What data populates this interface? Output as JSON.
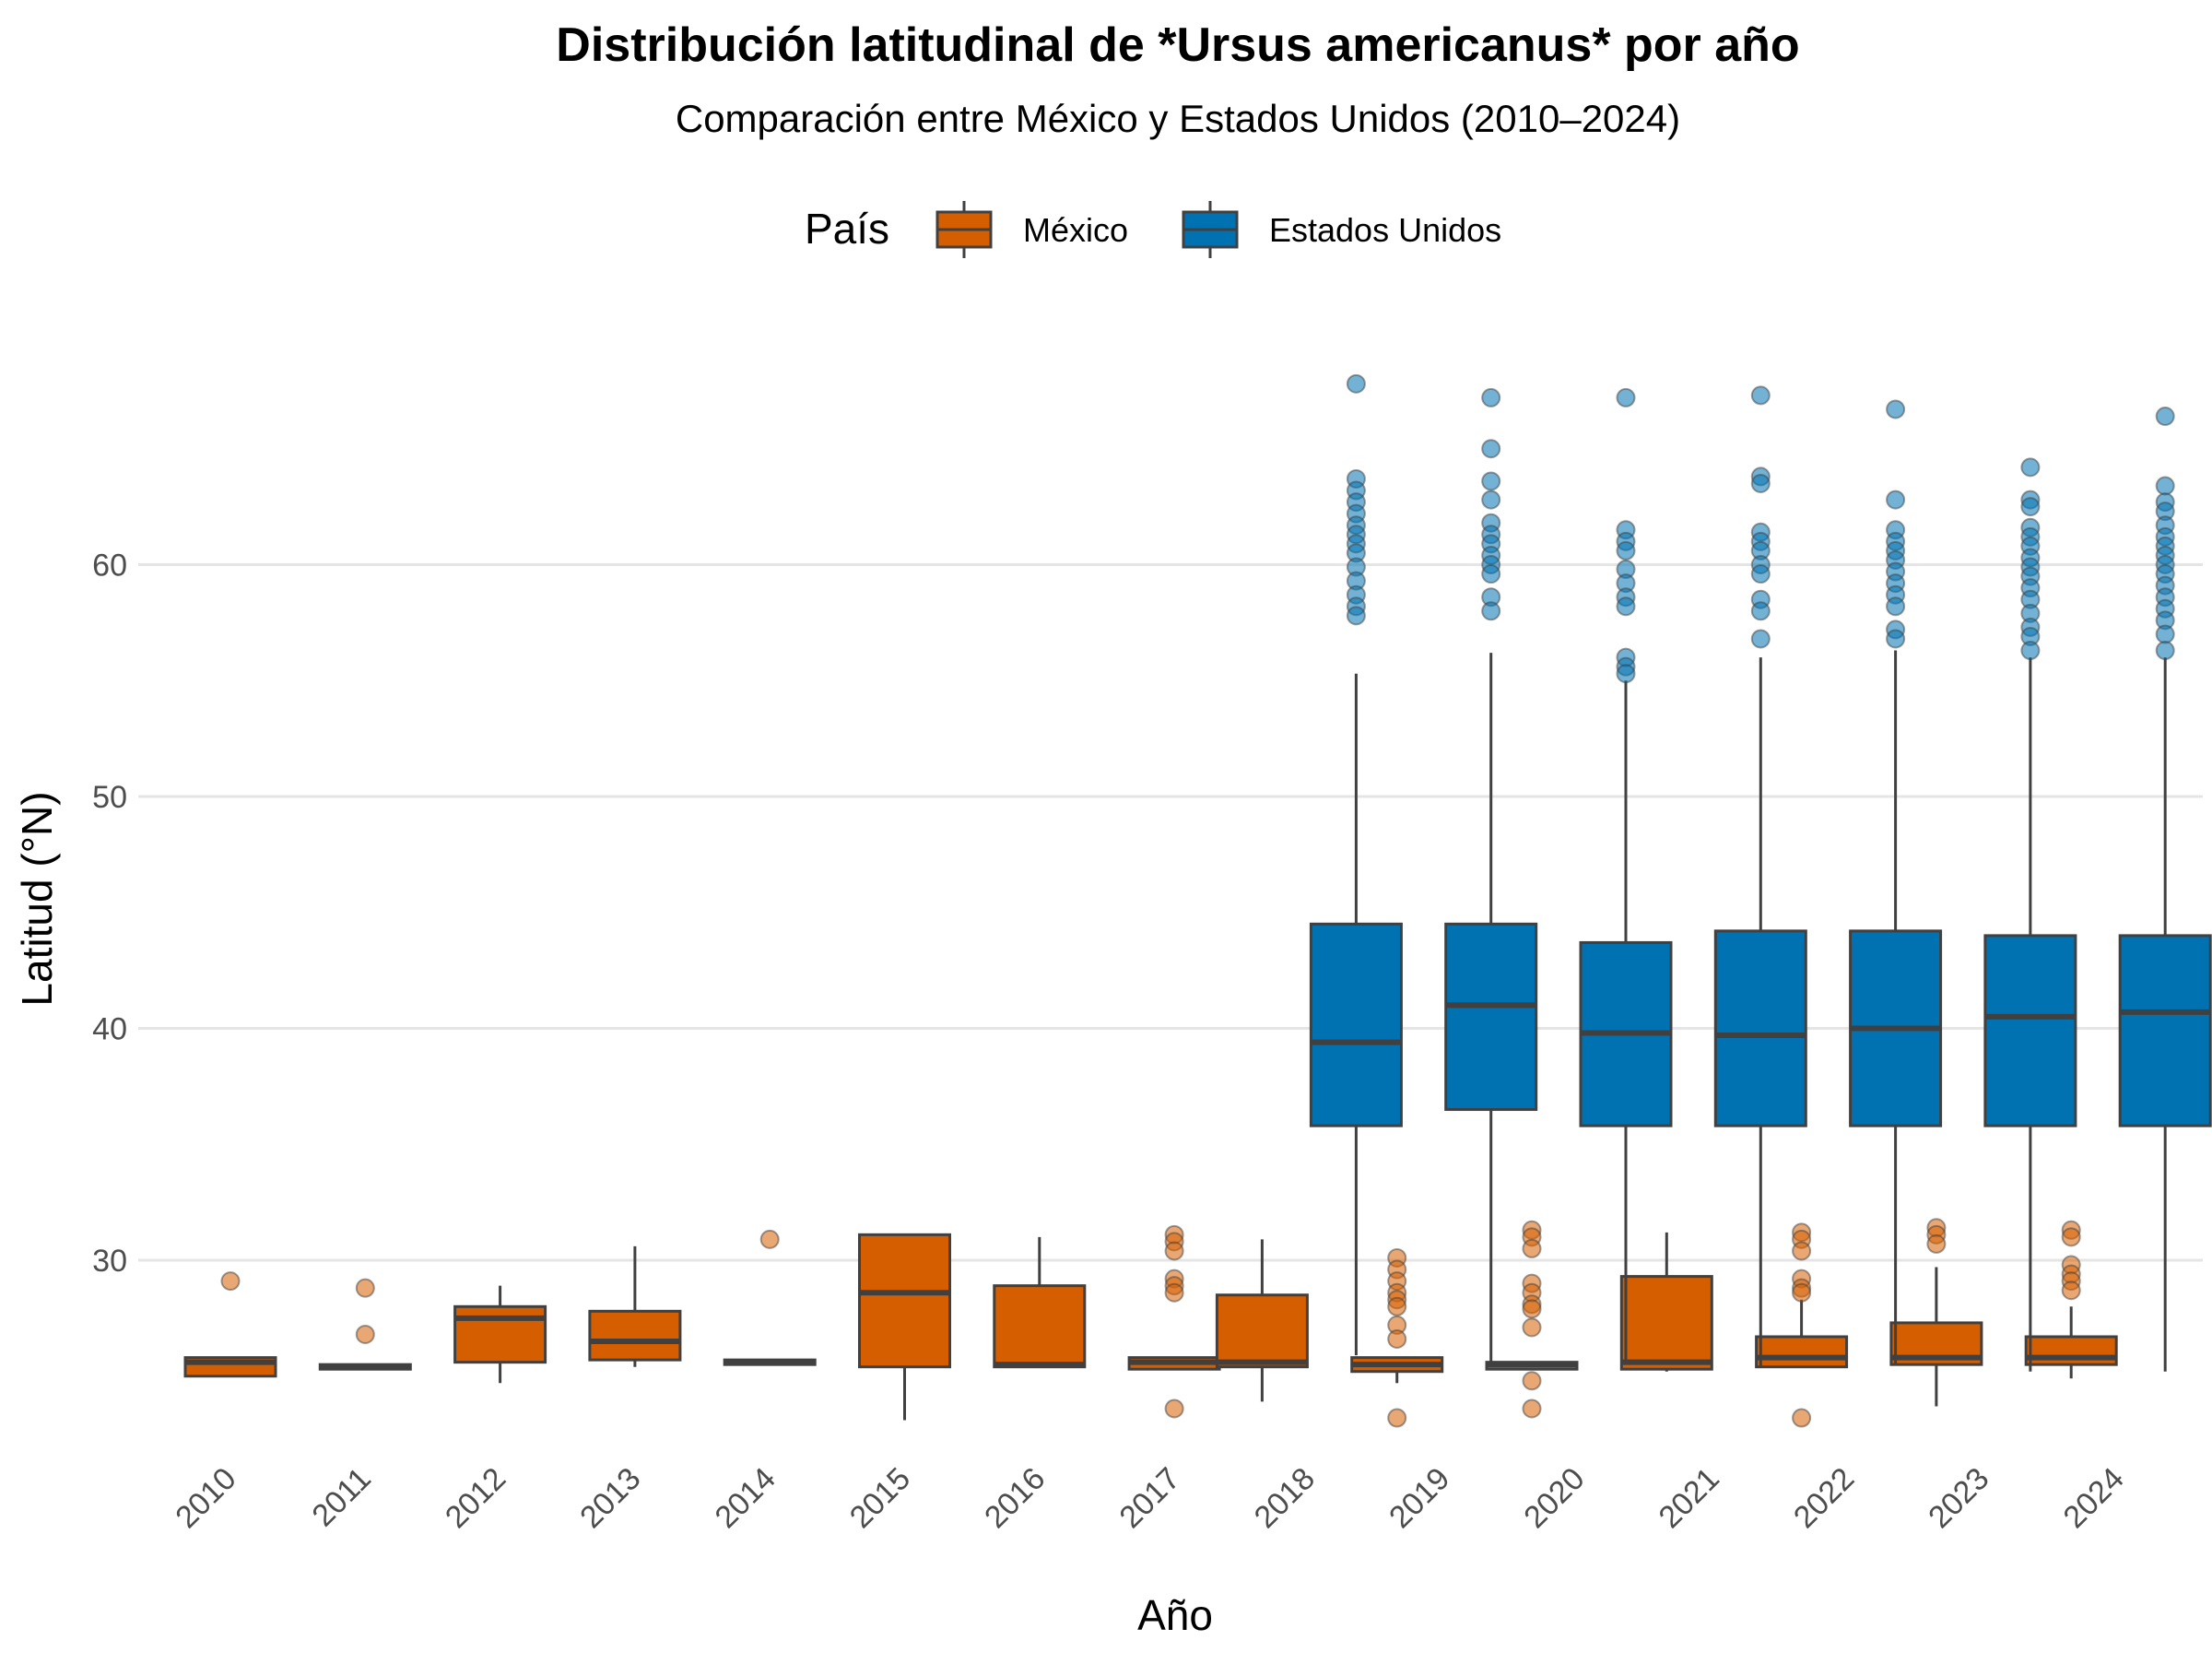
{
  "colors": {
    "mexico": "#D55E00",
    "usa": "#0072B2",
    "box_stroke": "#404040",
    "grid": "#E5E5E5",
    "tick_text": "#4D4D4D",
    "title_text": "#000000"
  },
  "chart_data": {
    "type": "boxplot",
    "title": "Distribución latitudinal de *Ursus americanus* por año",
    "subtitle": "Comparación entre México y Estados Unidos (2010–2024)",
    "xlabel": "Año",
    "ylabel": "Latitud (°N)",
    "ylim": [
      21.5,
      70.5
    ],
    "yticks": [
      30,
      40,
      50,
      60
    ],
    "grid": "horizontal",
    "legend": {
      "title": "País",
      "position": "top"
    },
    "categories": [
      "2010",
      "2011",
      "2012",
      "2013",
      "2014",
      "2015",
      "2016",
      "2017",
      "2018",
      "2019",
      "2020",
      "2021",
      "2022",
      "2023",
      "2024"
    ],
    "series": [
      {
        "name": "México",
        "color": "#D55E00",
        "boxes": [
          {
            "year": "2010",
            "min": 25.0,
            "q1": 25.0,
            "median": 25.6,
            "q3": 25.8,
            "max": 25.8,
            "outliers": [
              29.1
            ]
          },
          {
            "year": "2011",
            "min": 25.3,
            "q1": 25.3,
            "median": 25.4,
            "q3": 25.5,
            "max": 25.5,
            "outliers": [
              28.8,
              26.8
            ]
          },
          {
            "year": "2012",
            "min": 24.7,
            "q1": 25.6,
            "median": 27.5,
            "q3": 28.0,
            "max": 28.9,
            "outliers": []
          },
          {
            "year": "2013",
            "min": 25.4,
            "q1": 25.7,
            "median": 26.5,
            "q3": 27.8,
            "max": 30.6,
            "outliers": []
          },
          {
            "year": "2014",
            "min": 25.5,
            "q1": 25.5,
            "median": 25.6,
            "q3": 25.7,
            "max": 25.7,
            "outliers": [
              30.9
            ]
          },
          {
            "year": "2015",
            "min": 23.1,
            "q1": 25.4,
            "median": 28.6,
            "q3": 31.1,
            "max": 31.1,
            "outliers": []
          },
          {
            "year": "2016",
            "min": 25.4,
            "q1": 25.4,
            "median": 25.5,
            "q3": 28.9,
            "max": 31.0,
            "outliers": []
          },
          {
            "year": "2017",
            "min": 25.3,
            "q1": 25.3,
            "median": 25.6,
            "q3": 25.8,
            "max": 25.8,
            "outliers": [
              31.1,
              30.8,
              30.4,
              29.2,
              28.9,
              28.6,
              23.6
            ]
          },
          {
            "year": "2018",
            "min": 23.9,
            "q1": 25.4,
            "median": 25.6,
            "q3": 28.5,
            "max": 30.9,
            "outliers": []
          },
          {
            "year": "2019",
            "min": 24.7,
            "q1": 25.2,
            "median": 25.5,
            "q3": 25.8,
            "max": 25.8,
            "outliers": [
              30.1,
              29.6,
              29.1,
              28.6,
              28.3,
              28.0,
              27.2,
              26.6,
              23.2
            ]
          },
          {
            "year": "2020",
            "min": 25.3,
            "q1": 25.3,
            "median": 25.5,
            "q3": 25.6,
            "max": 25.6,
            "outliers": [
              31.3,
              31.0,
              30.5,
              29.0,
              28.6,
              28.1,
              27.9,
              27.1,
              24.8,
              23.6
            ]
          },
          {
            "year": "2021",
            "min": 25.2,
            "q1": 25.3,
            "median": 25.6,
            "q3": 29.3,
            "max": 31.2,
            "outliers": []
          },
          {
            "year": "2022",
            "min": 25.4,
            "q1": 25.4,
            "median": 25.8,
            "q3": 26.7,
            "max": 28.3,
            "outliers": [
              31.2,
              30.9,
              30.4,
              29.2,
              28.8,
              28.6,
              23.2
            ]
          },
          {
            "year": "2023",
            "min": 23.7,
            "q1": 25.5,
            "median": 25.8,
            "q3": 27.3,
            "max": 29.7,
            "outliers": [
              31.4,
              31.1,
              30.7
            ]
          },
          {
            "year": "2024",
            "min": 24.9,
            "q1": 25.5,
            "median": 25.8,
            "q3": 26.7,
            "max": 28.0,
            "outliers": [
              31.3,
              31.0,
              29.8,
              29.4,
              29.1,
              28.7
            ]
          }
        ]
      },
      {
        "name": "Estados Unidos",
        "color": "#0072B2",
        "boxes": [
          {
            "year": "2018",
            "min": 25.9,
            "q1": 35.8,
            "median": 39.4,
            "q3": 44.5,
            "max": 55.3,
            "outliers": [
              67.8,
              63.7,
              63.2,
              62.7,
              62.2,
              61.7,
              61.3,
              60.9,
              60.5,
              59.9,
              59.3,
              58.7,
              58.2,
              57.8
            ]
          },
          {
            "year": "2019",
            "min": 25.5,
            "q1": 36.5,
            "median": 41.0,
            "q3": 44.5,
            "max": 56.2,
            "outliers": [
              67.2,
              65.0,
              63.6,
              62.8,
              61.8,
              61.3,
              60.9,
              60.4,
              60.0,
              59.6,
              58.6,
              58.0
            ]
          },
          {
            "year": "2020",
            "min": 25.5,
            "q1": 35.8,
            "median": 39.8,
            "q3": 43.7,
            "max": 55.0,
            "outliers": [
              67.2,
              61.5,
              61.0,
              60.6,
              59.8,
              59.2,
              58.6,
              58.2,
              56.0,
              55.6,
              55.3
            ]
          },
          {
            "year": "2021",
            "min": 25.4,
            "q1": 35.8,
            "median": 39.7,
            "q3": 44.2,
            "max": 56.0,
            "outliers": [
              67.3,
              63.8,
              63.5,
              61.4,
              61.0,
              60.6,
              60.0,
              59.6,
              58.5,
              58.0,
              56.8
            ]
          },
          {
            "year": "2022",
            "min": 25.5,
            "q1": 35.8,
            "median": 40.0,
            "q3": 44.2,
            "max": 56.3,
            "outliers": [
              66.7,
              62.8,
              61.5,
              61.0,
              60.6,
              60.2,
              59.7,
              59.2,
              58.7,
              58.2,
              57.2,
              56.8
            ]
          },
          {
            "year": "2023",
            "min": 25.2,
            "q1": 35.8,
            "median": 40.5,
            "q3": 44.0,
            "max": 56.0,
            "outliers": [
              64.2,
              62.8,
              62.5,
              61.6,
              61.2,
              60.8,
              60.3,
              59.9,
              59.5,
              59.0,
              58.5,
              57.9,
              57.3,
              56.9,
              56.3
            ]
          },
          {
            "year": "2024",
            "min": 25.2,
            "q1": 35.8,
            "median": 40.7,
            "q3": 44.0,
            "max": 56.0,
            "outliers": [
              66.4,
              63.4,
              62.7,
              62.3,
              61.7,
              61.2,
              60.8,
              60.4,
              60.0,
              59.6,
              59.1,
              58.6,
              58.1,
              57.6,
              57.0,
              56.3
            ]
          }
        ]
      }
    ]
  }
}
